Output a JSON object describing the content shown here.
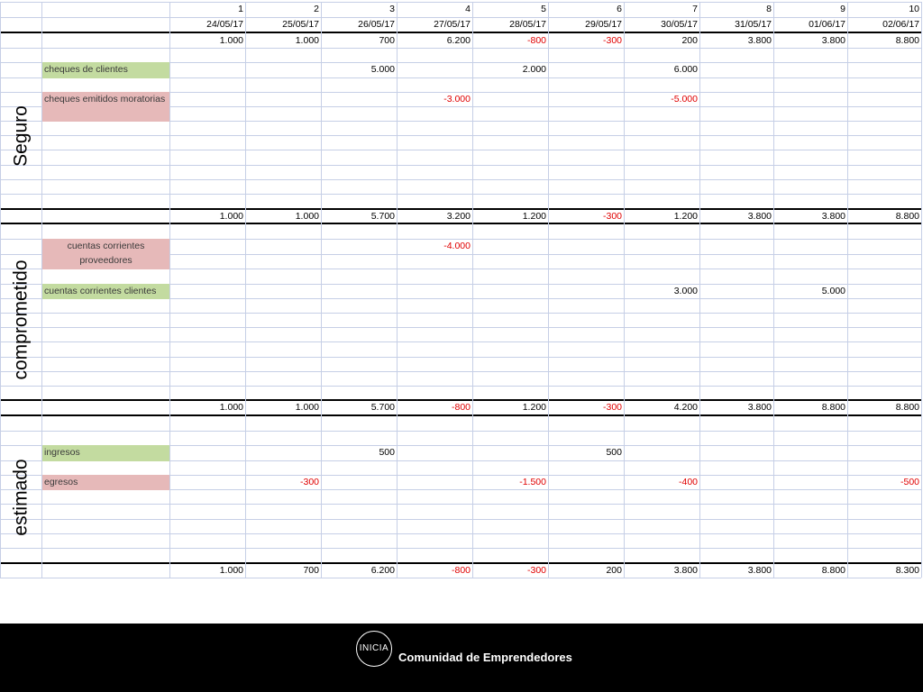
{
  "header": {
    "numbers": [
      "1",
      "2",
      "3",
      "4",
      "5",
      "6",
      "7",
      "8",
      "9",
      "10"
    ],
    "dates": [
      "24/05/17",
      "25/05/17",
      "26/05/17",
      "27/05/17",
      "28/05/17",
      "29/05/17",
      "30/05/17",
      "31/05/17",
      "01/06/17",
      "02/06/17"
    ],
    "opening": [
      "1.000",
      "1.000",
      "700",
      "6.200",
      "-800",
      "-300",
      "200",
      "3.800",
      "3.800",
      "8.800"
    ]
  },
  "sections": [
    {
      "title": "Seguro",
      "items": [
        {
          "label": "cheques de clientes",
          "color": "green",
          "values": [
            "",
            "",
            "5.000",
            "",
            "2.000",
            "",
            "6.000",
            "",
            "",
            ""
          ]
        },
        {
          "label": "cheques emitidos moratorias",
          "color": "pink",
          "values": [
            "",
            "",
            "",
            "-3.000",
            "",
            "",
            "-5.000",
            "",
            "",
            ""
          ]
        }
      ],
      "totals": [
        "1.000",
        "1.000",
        "5.700",
        "3.200",
        "1.200",
        "-300",
        "1.200",
        "3.800",
        "3.800",
        "8.800"
      ]
    },
    {
      "title": "comprometido",
      "items": [
        {
          "label": "cuentas corrientes proveedores",
          "color": "pink",
          "values": [
            "",
            "",
            "",
            "-4.000",
            "",
            "",
            "",
            "",
            "",
            ""
          ]
        },
        {
          "label": "cuentas corrientes clientes",
          "color": "green",
          "values": [
            "",
            "",
            "",
            "",
            "",
            "",
            "3.000",
            "",
            "5.000",
            ""
          ]
        }
      ],
      "totals": [
        "1.000",
        "1.000",
        "5.700",
        "-800",
        "1.200",
        "-300",
        "4.200",
        "3.800",
        "8.800",
        "8.800"
      ]
    },
    {
      "title": "estimado",
      "items": [
        {
          "label": "ingresos",
          "color": "green",
          "values": [
            "",
            "",
            "500",
            "",
            "",
            "500",
            "",
            "",
            "",
            ""
          ]
        },
        {
          "label": "egresos",
          "color": "pink",
          "values": [
            "",
            "-300",
            "",
            "",
            "-1.500",
            "",
            "-400",
            "",
            "",
            "-500"
          ]
        }
      ],
      "totals": [
        "1.000",
        "700",
        "6.200",
        "-800",
        "-300",
        "200",
        "3.800",
        "3.800",
        "8.800",
        "8.300"
      ]
    }
  ],
  "footer": {
    "logo_text": "INICIA",
    "tagline": "Comunidad de Emprendedores"
  },
  "colors": {
    "green": "#c3dba0",
    "pink": "#e6b9b9",
    "negative": "#e00000",
    "grid": "#c6cfe6"
  }
}
